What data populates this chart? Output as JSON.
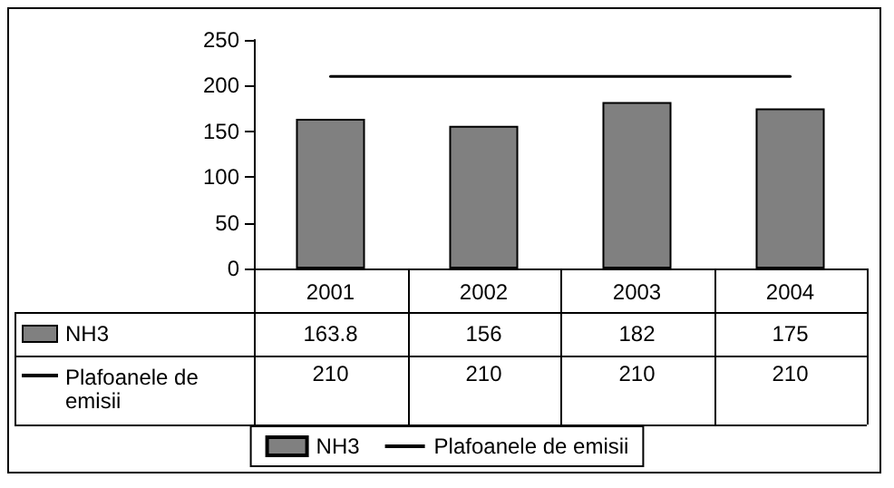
{
  "chart_data": {
    "type": "bar",
    "categories": [
      "2001",
      "2002",
      "2003",
      "2004"
    ],
    "series": [
      {
        "name": "NH3",
        "color": "#808080",
        "values": [
          163.8,
          156,
          182,
          175
        ]
      },
      {
        "name": "Plafoanele de emisii",
        "type": "line",
        "color": "#000000",
        "values": [
          210,
          210,
          210,
          210
        ]
      }
    ],
    "ylim": [
      0,
      250
    ],
    "yticks": [
      0,
      50,
      100,
      150,
      200,
      250
    ],
    "data_labels": true,
    "legend": "bottom",
    "marker": "none",
    "line_style": "solid"
  }
}
